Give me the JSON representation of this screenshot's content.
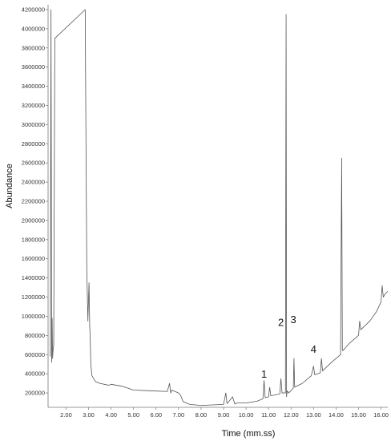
{
  "chart_data": {
    "type": "line",
    "title": "",
    "xlabel": "Time (mm.ss)",
    "ylabel": "Abundance",
    "xlim": [
      1.2,
      16.3
    ],
    "ylim": [
      50000,
      4250000
    ],
    "grid": false,
    "x_ticks": [
      "2.00",
      "3.00",
      "4.00",
      "5.00",
      "6.00",
      "7.00",
      "8.00",
      "9.00",
      "10.00",
      "11.00",
      "12.00",
      "13.00",
      "14.00",
      "15.00",
      "16.00"
    ],
    "y_ticks": [
      "200000",
      "400000",
      "600000",
      "800000",
      "1000000",
      "1200000",
      "1400000",
      "1600000",
      "1800000",
      "2000000",
      "2200000",
      "2400000",
      "2600000",
      "2800000",
      "3000000",
      "3200000",
      "3400000",
      "3600000",
      "3800000",
      "4000000",
      "4200000"
    ],
    "series": [
      {
        "name": "",
        "color": "#555555",
        "x": [
          1.3,
          1.33,
          1.36,
          1.38,
          1.4,
          1.42,
          1.45,
          1.5,
          2.85,
          2.88,
          2.92,
          2.97,
          3.02,
          3.05,
          3.07,
          3.1,
          3.15,
          3.3,
          3.5,
          3.7,
          3.9,
          4.0,
          4.5,
          5.0,
          5.5,
          6.0,
          6.5,
          6.6,
          6.65,
          6.7,
          7.0,
          7.1,
          7.2,
          7.5,
          8.0,
          8.5,
          9.0,
          9.1,
          9.15,
          9.2,
          9.4,
          9.5,
          9.6,
          10.0,
          10.5,
          10.75,
          10.8,
          10.85,
          11.0,
          11.05,
          11.1,
          11.5,
          11.55,
          11.6,
          11.75,
          11.78,
          11.8,
          11.83,
          11.9,
          12.1,
          12.13,
          12.16,
          12.5,
          12.9,
          13.0,
          13.05,
          13.3,
          13.35,
          13.4,
          13.8,
          14.2,
          14.25,
          14.28,
          14.3,
          14.6,
          15.0,
          15.05,
          15.1,
          15.5,
          15.8,
          16.0,
          16.05,
          16.1,
          16.2,
          16.3
        ],
        "y": [
          580000,
          4200000,
          520000,
          980000,
          560000,
          640000,
          700000,
          3900000,
          4200000,
          3000000,
          1500000,
          950000,
          1350000,
          900000,
          800000,
          500000,
          380000,
          320000,
          300000,
          290000,
          280000,
          290000,
          270000,
          230000,
          225000,
          220000,
          215000,
          300000,
          200000,
          230000,
          200000,
          170000,
          110000,
          80000,
          70000,
          75000,
          80000,
          200000,
          90000,
          100000,
          160000,
          85000,
          95000,
          95000,
          115000,
          140000,
          330000,
          150000,
          160000,
          260000,
          170000,
          190000,
          350000,
          200000,
          200000,
          4150000,
          160000,
          220000,
          200000,
          250000,
          560000,
          260000,
          300000,
          380000,
          480000,
          390000,
          410000,
          560000,
          430000,
          520000,
          600000,
          2650000,
          650000,
          640000,
          720000,
          800000,
          950000,
          860000,
          950000,
          1050000,
          1150000,
          1320000,
          1200000,
          1240000,
          1260000
        ]
      }
    ],
    "annotations": [
      {
        "text": "1",
        "x": 10.8,
        "y": 360000
      },
      {
        "text": "2",
        "x": 11.55,
        "y": 900000
      },
      {
        "text": "3",
        "x": 12.1,
        "y": 930000
      },
      {
        "text": "4",
        "x": 13.0,
        "y": 620000
      }
    ]
  }
}
